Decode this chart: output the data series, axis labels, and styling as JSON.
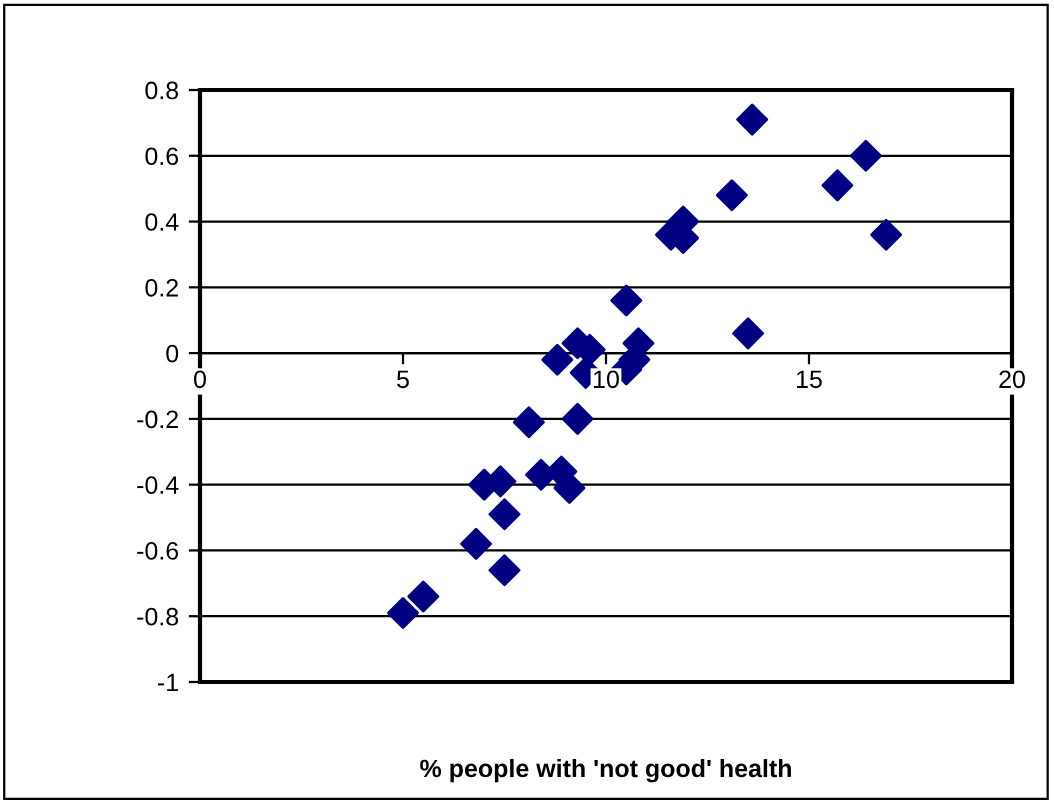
{
  "chart_data": {
    "type": "scatter",
    "xlabel": "% people with 'not good' health",
    "x": [
      13.6,
      16.4,
      15.7,
      13.1,
      16.9,
      11.9,
      11.6,
      11.9,
      10.5,
      13.5,
      9.3,
      9.6,
      8.8,
      9.5,
      10.8,
      10.7,
      10.5,
      8.1,
      9.3,
      8.4,
      8.9,
      9.1,
      7.0,
      7.4,
      7.5,
      6.8,
      7.5,
      5.5,
      5.0
    ],
    "series": [
      {
        "color": "#000080",
        "values": [
          0.71,
          0.6,
          0.51,
          0.48,
          0.36,
          0.4,
          0.36,
          0.35,
          0.16,
          0.06,
          0.03,
          0.01,
          -0.02,
          -0.06,
          0.03,
          -0.02,
          -0.05,
          -0.21,
          -0.2,
          -0.37,
          -0.36,
          -0.41,
          -0.4,
          -0.39,
          -0.49,
          -0.58,
          -0.66,
          -0.74,
          -0.79
        ]
      }
    ],
    "xlim": [
      0,
      20
    ],
    "xticks": [
      0,
      5,
      10,
      15,
      20
    ],
    "ylim": [
      -1,
      0.8
    ],
    "yticks": [
      -1,
      -0.8,
      -0.6,
      -0.4,
      -0.2,
      0,
      0.2,
      0.4,
      0.6,
      0.8
    ],
    "grid": "y",
    "marker": "diamond"
  }
}
